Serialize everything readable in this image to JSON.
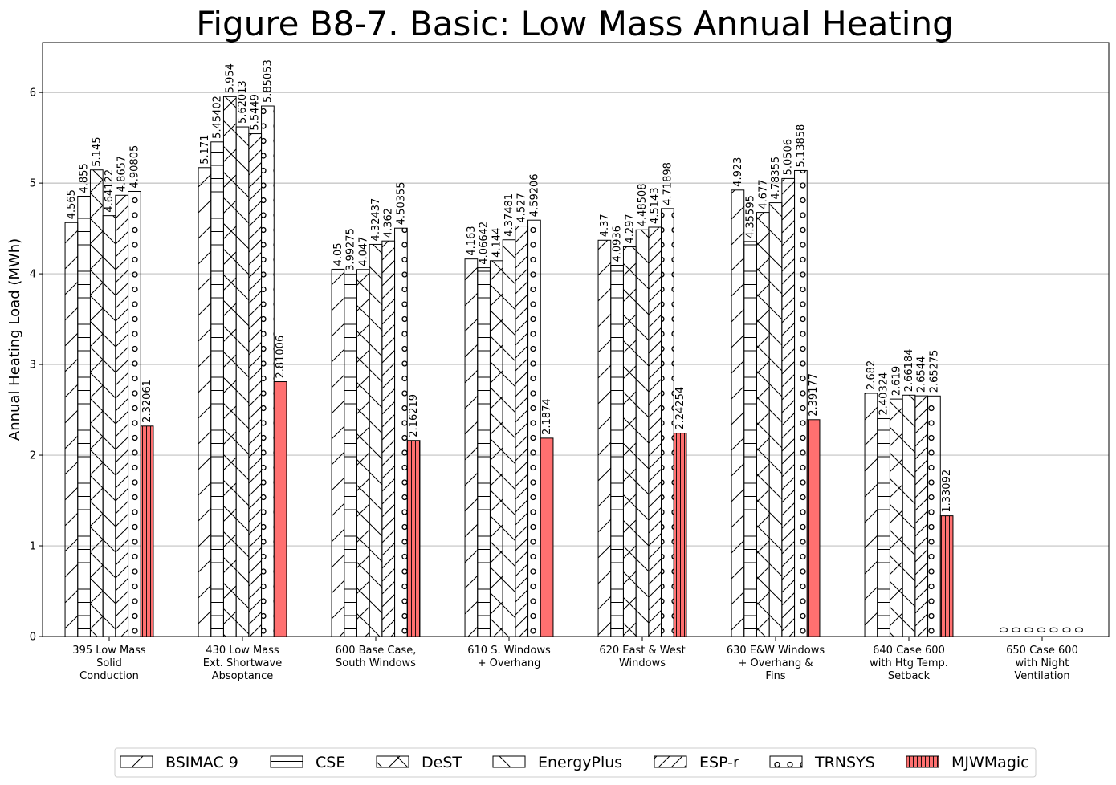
{
  "chart_data": {
    "type": "bar",
    "title": "Figure B8-7.  Basic: Low Mass Annual Heating",
    "xlabel": "",
    "ylabel": "Annual Heating Load (MWh)",
    "ylim": [
      0,
      6.55
    ],
    "yticks": [
      "0",
      "1",
      "2",
      "3",
      "4",
      "5",
      "6"
    ],
    "grid": "horizontal",
    "legend_position": "bottom-center",
    "categories": [
      [
        "395 Low Mass",
        "Solid",
        "Conduction"
      ],
      [
        "430 Low Mass",
        "Ext. Shortwave",
        "Absoptance"
      ],
      [
        "600 Base Case,",
        "South Windows"
      ],
      [
        "610 S. Windows",
        "+ Overhang"
      ],
      [
        "620 East & West",
        "Windows"
      ],
      [
        "630 E&W Windows",
        "+ Overhang &",
        "Fins"
      ],
      [
        "640 Case 600",
        "with Htg Temp.",
        "Setback"
      ],
      [
        "650 Case 600",
        "with Night",
        "Ventilation"
      ]
    ],
    "series": [
      {
        "name": "BSIMAC 9",
        "pattern": "slash",
        "color": "#ffffff",
        "values": [
          4.565,
          5.171,
          4.05,
          4.163,
          4.37,
          4.923,
          2.682,
          0
        ],
        "labels": [
          "4.565",
          "5.171",
          "4.05",
          "4.163",
          "4.37",
          "4.923",
          "2.682",
          "0"
        ]
      },
      {
        "name": "CSE",
        "pattern": "hline",
        "color": "#ffffff",
        "values": [
          4.855,
          5.45402,
          3.99275,
          4.06642,
          4.0936,
          4.35595,
          2.40324,
          0
        ],
        "labels": [
          "4.855",
          "5.45402",
          "3.99275",
          "4.06642",
          "4.0936",
          "4.35595",
          "2.40324",
          "0"
        ]
      },
      {
        "name": "DeST",
        "pattern": "cross",
        "color": "#ffffff",
        "values": [
          5.145,
          5.954,
          4.047,
          4.144,
          4.297,
          4.677,
          2.619,
          0
        ],
        "labels": [
          "5.145",
          "5.954",
          "4.047",
          "4.144",
          "4.297",
          "4.677",
          "2.619",
          "0"
        ]
      },
      {
        "name": "EnergyPlus",
        "pattern": "backslash",
        "color": "#ffffff",
        "values": [
          4.64122,
          5.62013,
          4.32437,
          4.37481,
          4.48508,
          4.78355,
          2.66184,
          0
        ],
        "labels": [
          "4.64122",
          "5.62013",
          "4.32437",
          "4.37481",
          "4.48508",
          "4.78355",
          "2.66184",
          "0"
        ]
      },
      {
        "name": "ESP-r",
        "pattern": "dslash",
        "color": "#ffffff",
        "values": [
          4.8657,
          5.5449,
          4.362,
          4.527,
          4.5143,
          5.0506,
          2.6544,
          0
        ],
        "labels": [
          "4.8657",
          "5.5449",
          "4.362",
          "4.527",
          "4.5143",
          "5.0506",
          "2.6544",
          "0"
        ]
      },
      {
        "name": "TRNSYS",
        "pattern": "circles",
        "color": "#ffffff",
        "values": [
          4.90805,
          5.85053,
          4.50355,
          4.59206,
          4.71898,
          5.13858,
          2.65275,
          0
        ],
        "labels": [
          "4.90805",
          "5.85053",
          "4.50355",
          "4.59206",
          "4.71898",
          "5.13858",
          "2.65275",
          "0"
        ]
      },
      {
        "name": "MJWMagic",
        "pattern": "vline",
        "color": "#ff7070",
        "values": [
          2.32061,
          2.81006,
          2.16219,
          2.1874,
          2.24254,
          2.39177,
          1.33092,
          0
        ],
        "labels": [
          "2.32061",
          "2.81006",
          "2.16219",
          "2.1874",
          "2.24254",
          "2.39177",
          "1.33092",
          "0"
        ]
      }
    ]
  }
}
